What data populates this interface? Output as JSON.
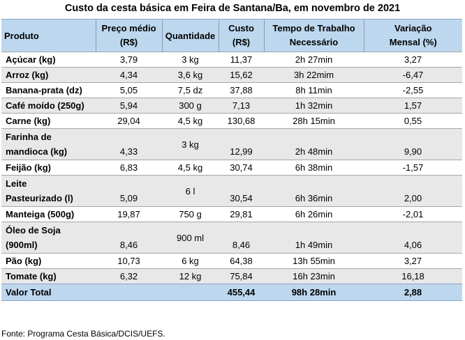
{
  "title": "Custo da cesta básica em Feira de Santana/Ba, em novembro de 2021",
  "headers": {
    "produto": "Produto",
    "preco_l1": "Preço médio",
    "preco_l2": "(R$)",
    "quantidade": "Quantidade",
    "custo_l1": "Custo",
    "custo_l2": "(R$)",
    "tempo_l1": "Tempo de Trabalho",
    "tempo_l2": "Necessário",
    "variacao_l1": "Variação",
    "variacao_l2": "Mensal (%)"
  },
  "rows": [
    {
      "produto": [
        "Açúcar (kg)"
      ],
      "preco": "3,79",
      "quantidade": "3 kg",
      "custo": "11,37",
      "tempo": "2h 27min",
      "variacao": "3,27"
    },
    {
      "produto": [
        "Arroz (kg)"
      ],
      "preco": "4,34",
      "quantidade": "3,6 kg",
      "custo": "15,62",
      "tempo": "3h 22mim",
      "variacao": "-6,47"
    },
    {
      "produto": [
        "Banana-prata (dz)"
      ],
      "preco": "5,05",
      "quantidade": "7,5 dz",
      "custo": "37,88",
      "tempo": "8h 11min",
      "variacao": "-2,55"
    },
    {
      "produto": [
        "Café moído (250g)"
      ],
      "preco": "5,94",
      "quantidade": "300 g",
      "custo": "7,13",
      "tempo": "1h 32min",
      "variacao": "1,57"
    },
    {
      "produto": [
        "Carne (kg)"
      ],
      "preco": "29,04",
      "quantidade": "4,5 kg",
      "custo": "130,68",
      "tempo": "28h 15min",
      "variacao": "0,55"
    },
    {
      "produto": [
        "Farinha de",
        "mandioca (kg)"
      ],
      "preco": "4,33",
      "quantidade": "3 kg",
      "custo": "12,99",
      "tempo": "2h 48min",
      "variacao": "9,90"
    },
    {
      "produto": [
        "Feijão (kg)"
      ],
      "preco": "6,83",
      "quantidade": "4,5 kg",
      "custo": "30,74",
      "tempo": "6h 38min",
      "variacao": "-1,57"
    },
    {
      "produto": [
        "Leite",
        "Pasteurizado (l)"
      ],
      "preco": "5,09",
      "quantidade": "6 l",
      "custo": "30,54",
      "tempo": "6h 36min",
      "variacao": "2,00"
    },
    {
      "produto": [
        "Manteiga (500g)"
      ],
      "preco": "19,87",
      "quantidade": "750 g",
      "custo": "29,81",
      "tempo": "6h 26min",
      "variacao": "-2,01"
    },
    {
      "produto": [
        "Óleo de Soja",
        "(900ml)"
      ],
      "preco": "8,46",
      "quantidade": "900 ml",
      "custo": "8,46",
      "tempo": "1h 49min",
      "variacao": "4,06"
    },
    {
      "produto": [
        "Pão (kg)"
      ],
      "preco": "10,73",
      "quantidade": "6 kg",
      "custo": "64,38",
      "tempo": "13h 55min",
      "variacao": "3,27"
    },
    {
      "produto": [
        "Tomate (kg)"
      ],
      "preco": "6,32",
      "quantidade": "12 kg",
      "custo": "75,84",
      "tempo": "16h 23min",
      "variacao": "16,18"
    }
  ],
  "total": {
    "label": "Valor Total",
    "custo": "455,44",
    "tempo": "98h 28min",
    "variacao": "2,88"
  },
  "source": "Fonte: Programa Cesta Básica/DCIS/UEFS.",
  "colors": {
    "header_bg": "#bdd7ee",
    "alt_row_bg": "#e8e8e8"
  }
}
